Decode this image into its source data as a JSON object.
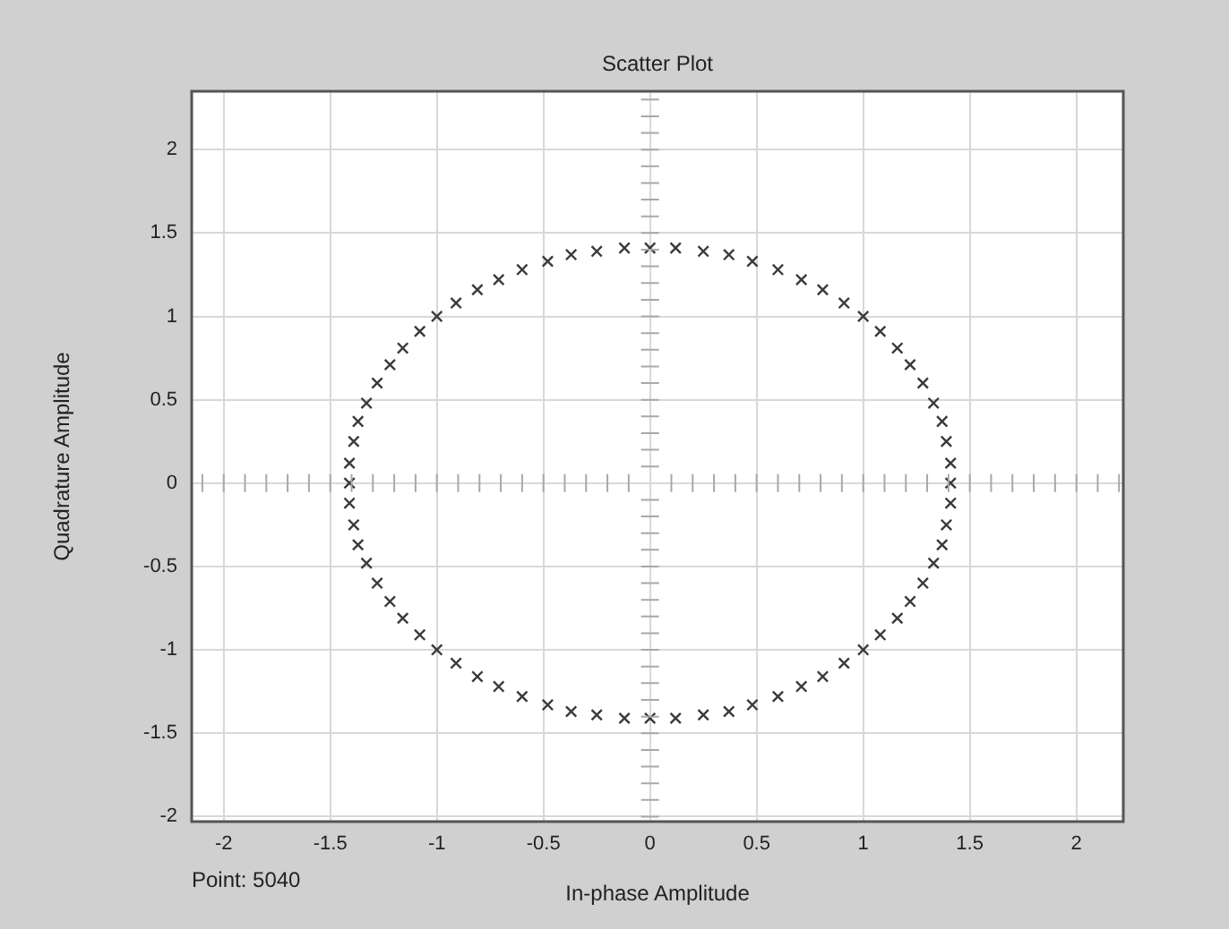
{
  "chart_data": {
    "type": "scatter",
    "title": "Scatter Plot",
    "xlabel": "In-phase Amplitude",
    "ylabel": "Quadrature Amplitude",
    "annotations": [
      "Point: 5040"
    ],
    "xlim": [
      -2.15,
      2.22
    ],
    "ylim": [
      -2.03,
      2.35
    ],
    "xticks": [
      -2,
      -1.5,
      -1,
      -0.5,
      0,
      0.5,
      1,
      1.5,
      2
    ],
    "yticks": [
      -2,
      -1.5,
      -1,
      -0.5,
      0,
      0.5,
      1,
      1.5,
      2
    ],
    "grid": true,
    "marker": "cross",
    "series": [
      {
        "color": "#3a3a3a",
        "x": [
          1.41,
          1.41,
          1.39,
          1.37,
          1.33,
          1.28,
          1.22,
          1.16,
          1.08,
          1.0,
          0.91,
          0.81,
          0.71,
          0.6,
          0.48,
          0.37,
          0.25,
          0.12,
          0,
          -0.12,
          -0.25,
          -0.37,
          -0.48,
          -0.6,
          -0.71,
          -0.81,
          -0.91,
          -1.0,
          -1.08,
          -1.16,
          -1.22,
          -1.28,
          -1.33,
          -1.37,
          -1.39,
          -1.41,
          -1.41,
          -1.41,
          -1.39,
          -1.37,
          -1.33,
          -1.28,
          -1.22,
          -1.16,
          -1.08,
          -1.0,
          -0.91,
          -0.81,
          -0.71,
          -0.6,
          -0.48,
          -0.37,
          -0.25,
          -0.12,
          0,
          0.12,
          0.25,
          0.37,
          0.48,
          0.6,
          0.71,
          0.81,
          0.91,
          1.0,
          1.08,
          1.16,
          1.22,
          1.28,
          1.33,
          1.37,
          1.39,
          1.41
        ],
        "values": [
          0,
          0.12,
          0.25,
          0.37,
          0.48,
          0.6,
          0.71,
          0.81,
          0.91,
          1.0,
          1.08,
          1.16,
          1.22,
          1.28,
          1.33,
          1.37,
          1.39,
          1.41,
          1.41,
          1.41,
          1.39,
          1.37,
          1.33,
          1.28,
          1.22,
          1.16,
          1.08,
          1.0,
          0.91,
          0.81,
          0.71,
          0.6,
          0.48,
          0.37,
          0.25,
          0.12,
          0,
          -0.12,
          -0.25,
          -0.37,
          -0.48,
          -0.6,
          -0.71,
          -0.81,
          -0.91,
          -1.0,
          -1.08,
          -1.16,
          -1.22,
          -1.28,
          -1.33,
          -1.37,
          -1.39,
          -1.41,
          -1.41,
          -1.41,
          -1.39,
          -1.37,
          -1.33,
          -1.28,
          -1.22,
          -1.16,
          -1.08,
          -1.0,
          -0.91,
          -0.81,
          -0.71,
          -0.6,
          -0.48,
          -0.37,
          -0.25,
          -0.12
        ]
      }
    ]
  }
}
